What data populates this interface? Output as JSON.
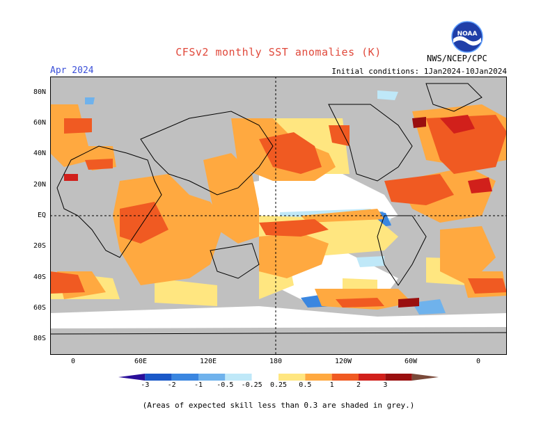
{
  "header": {
    "title": "CFSv2 monthly SST anomalies (K)",
    "month": "Apr 2024",
    "init": "Initial conditions: 1Jan2024-10Jan2024",
    "agency": "NWS/NCEP/CPC",
    "logo_text": "NOAA"
  },
  "map": {
    "lat_labels": [
      "80N",
      "60N",
      "40N",
      "20N",
      "EQ",
      "20S",
      "40S",
      "60S",
      "80S"
    ],
    "lon_labels": [
      "0",
      "60E",
      "120E",
      "180",
      "120W",
      "60W",
      "0"
    ],
    "colors": {
      "ocean_grey": "#c0c0c0",
      "land": "#c0c0c0",
      "neutral": "#ffffff",
      "warm_025": "#ffe680",
      "warm_05": "#ffa940",
      "warm_1": "#f05a22",
      "warm_2": "#d1201b",
      "warm_3": "#9a0f0f",
      "cool_025": "#bfe8f8",
      "cool_05": "#6fb2ec",
      "cool_1": "#3a86e0",
      "cool_2": "#1a58c8"
    }
  },
  "legend": {
    "labels": [
      "-3",
      "-2",
      "-1",
      "-0.5",
      "-0.25",
      "0.25",
      "0.5",
      "1",
      "2",
      "3"
    ],
    "colors": [
      "#2a0f9a",
      "#1a58c8",
      "#3a86e0",
      "#6fb2ec",
      "#bfe8f8",
      "#ffffff",
      "#ffe680",
      "#ffa940",
      "#f05a22",
      "#d1201b",
      "#9a0f0f",
      "#7a4a3a"
    ]
  },
  "footnote": "(Areas of expected skill less than 0.3 are shaded in grey.)"
}
